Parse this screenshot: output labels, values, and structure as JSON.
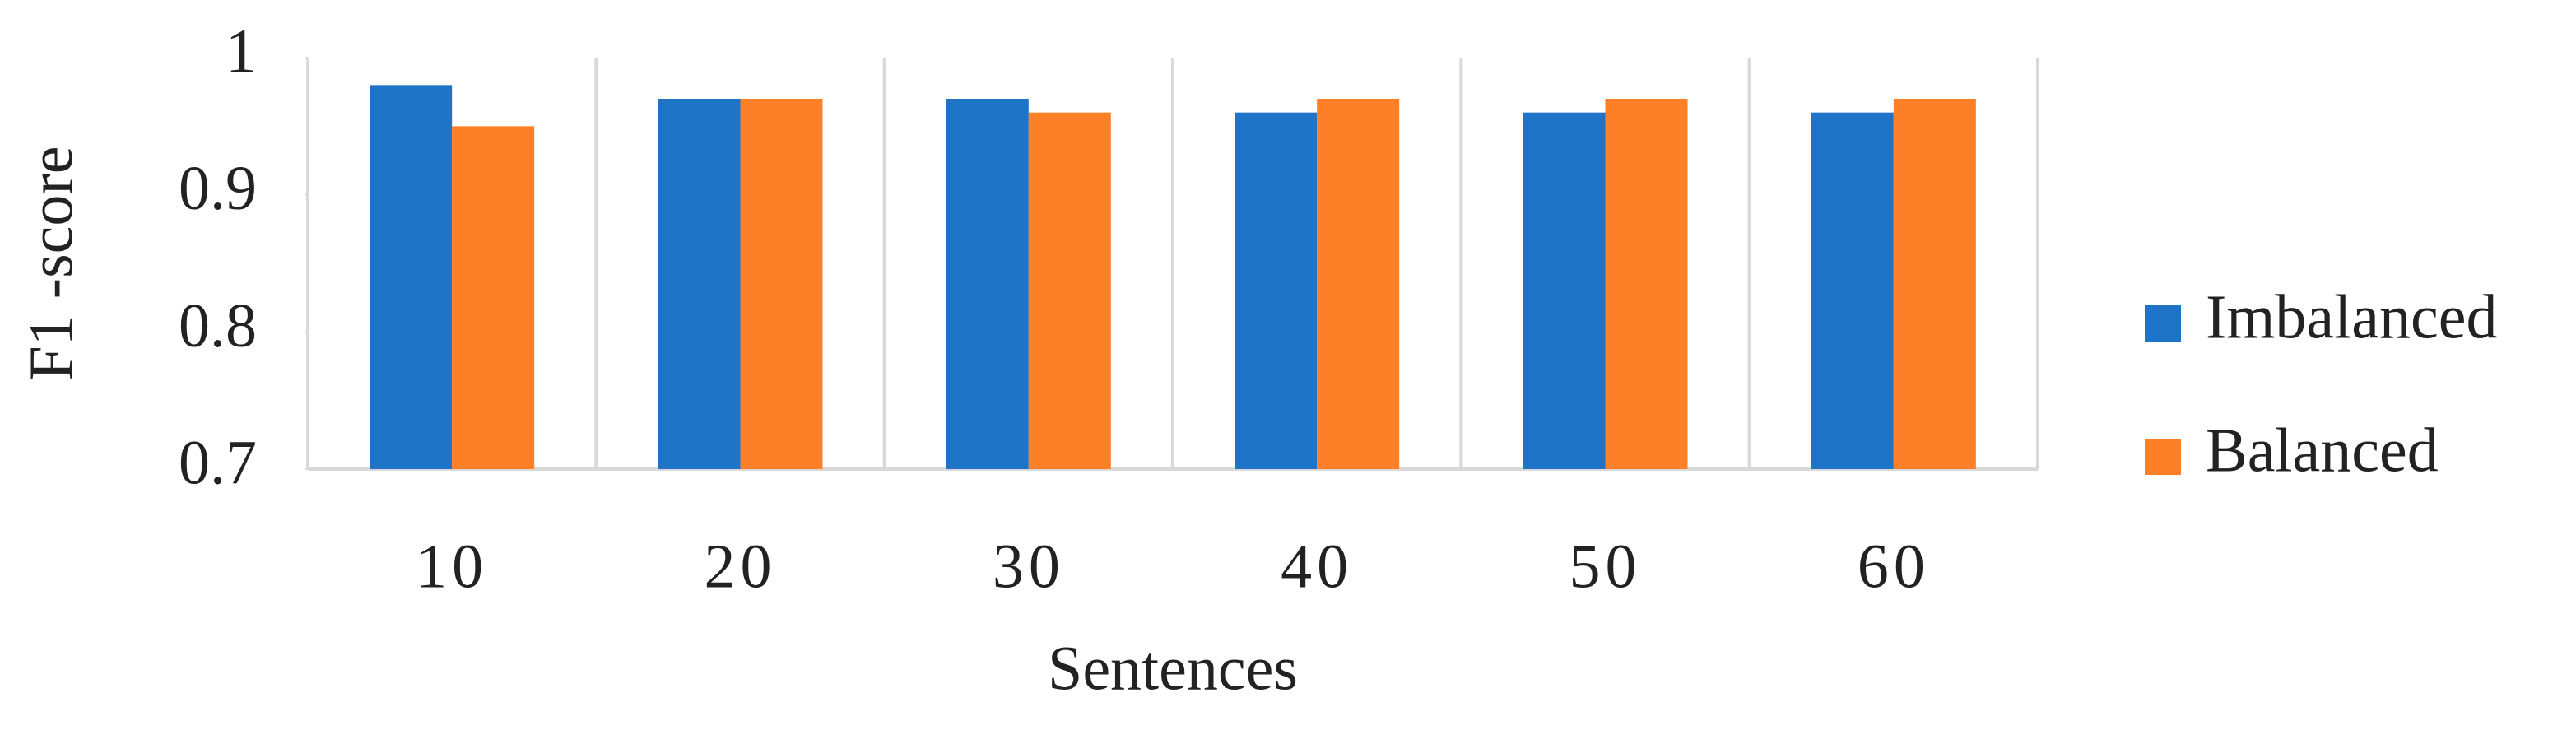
{
  "chart_data": {
    "type": "bar",
    "x_label": "Sentences",
    "y_label": "F1 -score",
    "categories": [
      "10",
      "20",
      "30",
      "40",
      "50",
      "60"
    ],
    "series": [
      {
        "name": "Imbalanced",
        "color": "#1f74c7",
        "values": [
          0.98,
          0.97,
          0.97,
          0.96,
          0.96,
          0.96
        ]
      },
      {
        "name": "Balanced",
        "color": "#fd7f28",
        "values": [
          0.95,
          0.97,
          0.96,
          0.97,
          0.97,
          0.97
        ]
      }
    ],
    "ylim": [
      0.7,
      1
    ],
    "yticks": [
      0.7,
      0.8,
      0.9,
      1
    ],
    "category_separators": true,
    "legend": "right"
  }
}
